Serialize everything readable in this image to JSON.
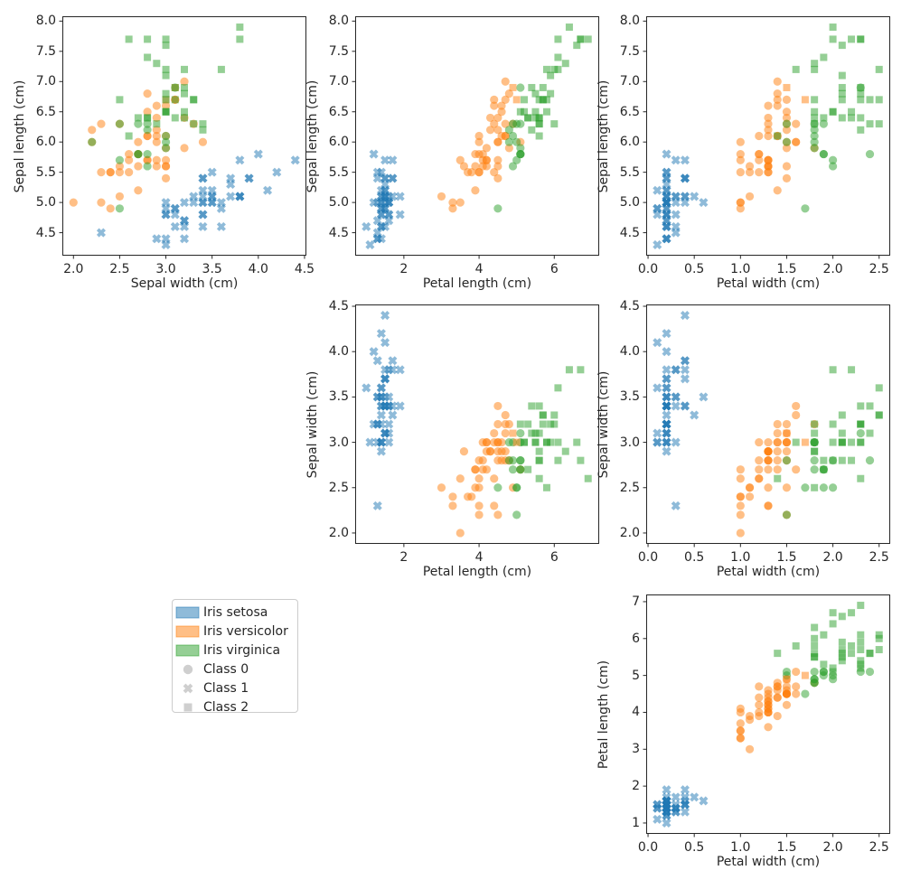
{
  "figure": {
    "background": "#ffffff"
  },
  "colors": {
    "species_colors": [
      "#1f77b4",
      "#ff7f0e",
      "#2ca02c"
    ],
    "point_alpha": 0.5,
    "legend_marker_gray": "#cfcfcf",
    "text": "#262626",
    "spine": "#262626",
    "legend_border": "#cccccc"
  },
  "legend": {
    "entries": [
      {
        "label": "Iris setosa",
        "type": "patch",
        "color": "#1f77b4"
      },
      {
        "label": "Iris versicolor",
        "type": "patch",
        "color": "#ff7f0e"
      },
      {
        "label": "Iris virginica",
        "type": "patch",
        "color": "#2ca02c"
      },
      {
        "label": "Class 0",
        "type": "marker",
        "marker": "circle",
        "color": "#cfcfcf"
      },
      {
        "label": "Class 1",
        "type": "marker",
        "marker": "x",
        "color": "#cfcfcf"
      },
      {
        "label": "Class 2",
        "type": "marker",
        "marker": "square",
        "color": "#cfcfcf"
      }
    ]
  },
  "subplots": [
    {
      "id": "sepal-width-vs-sepal-length",
      "row": 0,
      "col": 0,
      "x_feature": "sepal_width",
      "y_feature": "sepal_length",
      "xlabel": "Sepal width (cm)",
      "ylabel": "Sepal length (cm)",
      "xlim": [
        1.88,
        4.52
      ],
      "ylim": [
        4.12,
        8.08
      ],
      "xticks": [
        {
          "v": 2.0,
          "label": "2.0"
        },
        {
          "v": 2.5,
          "label": "2.5"
        },
        {
          "v": 3.0,
          "label": "3.0"
        },
        {
          "v": 3.5,
          "label": "3.5"
        },
        {
          "v": 4.0,
          "label": "4.0"
        },
        {
          "v": 4.5,
          "label": "4.5"
        }
      ],
      "yticks": [
        {
          "v": 4.5,
          "label": "4.5"
        },
        {
          "v": 5.0,
          "label": "5.0"
        },
        {
          "v": 5.5,
          "label": "5.5"
        },
        {
          "v": 6.0,
          "label": "6.0"
        },
        {
          "v": 6.5,
          "label": "6.5"
        },
        {
          "v": 7.0,
          "label": "7.0"
        },
        {
          "v": 7.5,
          "label": "7.5"
        },
        {
          "v": 8.0,
          "label": "8.0"
        }
      ]
    },
    {
      "id": "petal-length-vs-sepal-length",
      "row": 0,
      "col": 1,
      "x_feature": "petal_length",
      "y_feature": "sepal_length",
      "xlabel": "Petal length (cm)",
      "ylabel": "Sepal length (cm)",
      "xlim": [
        0.705,
        7.195
      ],
      "ylim": [
        4.12,
        8.08
      ],
      "xticks": [
        {
          "v": 2,
          "label": "2"
        },
        {
          "v": 4,
          "label": "4"
        },
        {
          "v": 6,
          "label": "6"
        }
      ],
      "yticks": [
        {
          "v": 4.5,
          "label": "4.5"
        },
        {
          "v": 5.0,
          "label": "5.0"
        },
        {
          "v": 5.5,
          "label": "5.5"
        },
        {
          "v": 6.0,
          "label": "6.0"
        },
        {
          "v": 6.5,
          "label": "6.5"
        },
        {
          "v": 7.0,
          "label": "7.0"
        },
        {
          "v": 7.5,
          "label": "7.5"
        },
        {
          "v": 8.0,
          "label": "8.0"
        }
      ]
    },
    {
      "id": "petal-width-vs-sepal-length",
      "row": 0,
      "col": 2,
      "x_feature": "petal_width",
      "y_feature": "sepal_length",
      "xlabel": "Petal width (cm)",
      "ylabel": "Sepal length (cm)",
      "xlim": [
        -0.02,
        2.62
      ],
      "ylim": [
        4.12,
        8.08
      ],
      "xticks": [
        {
          "v": 0.0,
          "label": "0.0"
        },
        {
          "v": 0.5,
          "label": "0.5"
        },
        {
          "v": 1.0,
          "label": "1.0"
        },
        {
          "v": 1.5,
          "label": "1.5"
        },
        {
          "v": 2.0,
          "label": "2.0"
        },
        {
          "v": 2.5,
          "label": "2.5"
        }
      ],
      "yticks": [
        {
          "v": 4.5,
          "label": "4.5"
        },
        {
          "v": 5.0,
          "label": "5.0"
        },
        {
          "v": 5.5,
          "label": "5.5"
        },
        {
          "v": 6.0,
          "label": "6.0"
        },
        {
          "v": 6.5,
          "label": "6.5"
        },
        {
          "v": 7.0,
          "label": "7.0"
        },
        {
          "v": 7.5,
          "label": "7.5"
        },
        {
          "v": 8.0,
          "label": "8.0"
        }
      ]
    },
    {
      "id": "petal-length-vs-sepal-width",
      "row": 1,
      "col": 1,
      "x_feature": "petal_length",
      "y_feature": "sepal_width",
      "xlabel": "Petal length (cm)",
      "ylabel": "Sepal width (cm)",
      "xlim": [
        0.705,
        7.195
      ],
      "ylim": [
        1.88,
        4.52
      ],
      "xticks": [
        {
          "v": 2,
          "label": "2"
        },
        {
          "v": 4,
          "label": "4"
        },
        {
          "v": 6,
          "label": "6"
        }
      ],
      "yticks": [
        {
          "v": 2.0,
          "label": "2.0"
        },
        {
          "v": 2.5,
          "label": "2.5"
        },
        {
          "v": 3.0,
          "label": "3.0"
        },
        {
          "v": 3.5,
          "label": "3.5"
        },
        {
          "v": 4.0,
          "label": "4.0"
        },
        {
          "v": 4.5,
          "label": "4.5"
        }
      ]
    },
    {
      "id": "petal-width-vs-sepal-width",
      "row": 1,
      "col": 2,
      "x_feature": "petal_width",
      "y_feature": "sepal_width",
      "xlabel": "Petal width (cm)",
      "ylabel": "Sepal width (cm)",
      "xlim": [
        -0.02,
        2.62
      ],
      "ylim": [
        1.88,
        4.52
      ],
      "xticks": [
        {
          "v": 0.0,
          "label": "0.0"
        },
        {
          "v": 0.5,
          "label": "0.5"
        },
        {
          "v": 1.0,
          "label": "1.0"
        },
        {
          "v": 1.5,
          "label": "1.5"
        },
        {
          "v": 2.0,
          "label": "2.0"
        },
        {
          "v": 2.5,
          "label": "2.5"
        }
      ],
      "yticks": [
        {
          "v": 2.0,
          "label": "2.0"
        },
        {
          "v": 2.5,
          "label": "2.5"
        },
        {
          "v": 3.0,
          "label": "3.0"
        },
        {
          "v": 3.5,
          "label": "3.5"
        },
        {
          "v": 4.0,
          "label": "4.0"
        },
        {
          "v": 4.5,
          "label": "4.5"
        }
      ]
    },
    {
      "id": "petal-width-vs-petal-length",
      "row": 2,
      "col": 2,
      "x_feature": "petal_width",
      "y_feature": "petal_length",
      "xlabel": "Petal width (cm)",
      "ylabel": "Petal length (cm)",
      "xlim": [
        -0.02,
        2.62
      ],
      "ylim": [
        0.705,
        7.195
      ],
      "xticks": [
        {
          "v": 0.0,
          "label": "0.0"
        },
        {
          "v": 0.5,
          "label": "0.5"
        },
        {
          "v": 1.0,
          "label": "1.0"
        },
        {
          "v": 1.5,
          "label": "1.5"
        },
        {
          "v": 2.0,
          "label": "2.0"
        },
        {
          "v": 2.5,
          "label": "2.5"
        }
      ],
      "yticks": [
        {
          "v": 1,
          "label": "1"
        },
        {
          "v": 2,
          "label": "2"
        },
        {
          "v": 3,
          "label": "3"
        },
        {
          "v": 4,
          "label": "4"
        },
        {
          "v": 5,
          "label": "5"
        },
        {
          "v": 6,
          "label": "6"
        },
        {
          "v": 7,
          "label": "7"
        }
      ]
    }
  ],
  "chart_data": {
    "type": "scatter",
    "species_names": [
      "Iris setosa",
      "Iris versicolor",
      "Iris virginica"
    ],
    "cluster_names": [
      "Class 0",
      "Class 1",
      "Class 2"
    ],
    "cluster_markers": [
      "circle",
      "x",
      "square"
    ],
    "samples": {
      "sepal_length": [
        5.1,
        4.9,
        4.7,
        4.6,
        5.0,
        5.4,
        4.6,
        5.0,
        4.4,
        4.9,
        5.4,
        4.8,
        4.8,
        4.3,
        5.8,
        5.7,
        5.4,
        5.1,
        5.7,
        5.1,
        5.4,
        5.1,
        4.6,
        5.1,
        4.8,
        5.0,
        5.0,
        5.2,
        5.2,
        4.7,
        4.8,
        5.4,
        5.2,
        5.5,
        4.9,
        5.0,
        5.5,
        4.9,
        4.4,
        5.1,
        5.0,
        4.5,
        4.4,
        5.0,
        5.1,
        4.8,
        5.1,
        4.6,
        5.3,
        5.0,
        7.0,
        6.4,
        6.9,
        5.5,
        6.5,
        5.7,
        6.3,
        4.9,
        6.6,
        5.2,
        5.0,
        5.9,
        6.0,
        6.1,
        5.6,
        6.7,
        5.6,
        5.8,
        6.2,
        5.6,
        5.9,
        6.1,
        6.3,
        6.1,
        6.4,
        6.6,
        6.8,
        6.7,
        6.0,
        5.7,
        5.5,
        5.5,
        5.8,
        6.0,
        5.4,
        6.0,
        6.7,
        6.3,
        5.6,
        5.5,
        5.5,
        6.1,
        5.8,
        5.0,
        5.6,
        5.7,
        5.7,
        6.2,
        5.1,
        5.7,
        6.3,
        5.8,
        7.1,
        6.3,
        6.5,
        7.6,
        4.9,
        7.3,
        6.7,
        7.2,
        6.5,
        6.4,
        6.8,
        5.7,
        5.8,
        6.4,
        6.5,
        7.7,
        7.7,
        6.0,
        6.9,
        5.6,
        7.7,
        6.3,
        6.7,
        7.2,
        6.2,
        6.1,
        6.4,
        7.2,
        7.4,
        7.9,
        6.4,
        6.3,
        6.1,
        7.7,
        6.3,
        6.4,
        6.0,
        6.9,
        6.7,
        6.9,
        5.8,
        6.8,
        6.7,
        6.7,
        6.3,
        6.5,
        6.2,
        5.9
      ],
      "sepal_width": [
        3.5,
        3.0,
        3.2,
        3.1,
        3.6,
        3.9,
        3.4,
        3.4,
        2.9,
        3.1,
        3.7,
        3.4,
        3.0,
        3.0,
        4.0,
        4.4,
        3.9,
        3.5,
        3.8,
        3.8,
        3.4,
        3.7,
        3.6,
        3.3,
        3.4,
        3.0,
        3.4,
        3.5,
        3.4,
        3.2,
        3.1,
        3.4,
        4.1,
        4.2,
        3.1,
        3.2,
        3.5,
        3.6,
        3.0,
        3.4,
        3.5,
        2.3,
        3.2,
        3.5,
        3.8,
        3.0,
        3.8,
        3.2,
        3.7,
        3.3,
        3.2,
        3.2,
        3.1,
        2.3,
        2.8,
        2.8,
        3.3,
        2.4,
        2.9,
        2.7,
        2.0,
        3.0,
        2.2,
        2.9,
        2.9,
        3.1,
        3.0,
        2.7,
        2.2,
        2.5,
        3.2,
        2.8,
        2.5,
        2.8,
        2.9,
        3.0,
        2.8,
        3.0,
        2.9,
        2.6,
        2.4,
        2.4,
        2.7,
        2.7,
        3.0,
        3.4,
        3.1,
        2.3,
        3.0,
        2.5,
        2.6,
        3.0,
        2.6,
        2.3,
        2.7,
        3.0,
        2.9,
        2.9,
        2.5,
        2.8,
        3.3,
        2.7,
        3.0,
        2.9,
        3.0,
        3.0,
        2.5,
        2.9,
        2.5,
        3.6,
        3.2,
        2.7,
        3.0,
        2.5,
        2.8,
        3.2,
        3.0,
        3.8,
        2.6,
        2.2,
        3.2,
        2.8,
        2.8,
        2.7,
        3.3,
        3.2,
        2.8,
        3.0,
        2.8,
        3.0,
        2.8,
        3.8,
        2.8,
        2.8,
        2.6,
        3.0,
        3.4,
        3.1,
        3.0,
        3.1,
        3.1,
        3.1,
        2.7,
        3.2,
        3.3,
        3.0,
        2.5,
        3.0,
        3.4,
        3.0
      ],
      "petal_length": [
        1.4,
        1.4,
        1.3,
        1.5,
        1.4,
        1.7,
        1.4,
        1.5,
        1.4,
        1.5,
        1.5,
        1.6,
        1.4,
        1.1,
        1.2,
        1.5,
        1.3,
        1.4,
        1.7,
        1.5,
        1.7,
        1.5,
        1.0,
        1.7,
        1.9,
        1.6,
        1.6,
        1.5,
        1.4,
        1.6,
        1.6,
        1.5,
        1.5,
        1.4,
        1.5,
        1.2,
        1.3,
        1.4,
        1.3,
        1.5,
        1.3,
        1.3,
        1.3,
        1.6,
        1.9,
        1.4,
        1.6,
        1.4,
        1.5,
        1.4,
        4.7,
        4.5,
        4.9,
        4.0,
        4.6,
        4.5,
        4.7,
        3.3,
        4.6,
        3.9,
        3.5,
        4.2,
        4.0,
        4.7,
        3.6,
        4.4,
        4.5,
        4.1,
        4.5,
        3.9,
        4.8,
        4.0,
        4.9,
        4.7,
        4.3,
        4.4,
        4.8,
        5.0,
        4.5,
        3.5,
        3.8,
        3.7,
        3.9,
        5.1,
        4.5,
        4.5,
        4.7,
        4.4,
        4.1,
        4.0,
        4.4,
        4.6,
        4.0,
        3.3,
        4.2,
        4.2,
        4.2,
        4.3,
        3.0,
        4.1,
        6.0,
        5.1,
        5.9,
        5.6,
        5.8,
        6.6,
        4.5,
        6.3,
        5.8,
        6.1,
        5.1,
        5.3,
        5.5,
        5.0,
        5.1,
        5.3,
        5.5,
        6.7,
        6.9,
        5.0,
        5.7,
        4.9,
        6.7,
        4.9,
        5.7,
        6.0,
        4.8,
        4.9,
        5.6,
        5.8,
        6.1,
        6.4,
        5.6,
        5.1,
        5.6,
        6.1,
        5.6,
        5.5,
        4.8,
        5.4,
        5.6,
        5.1,
        5.1,
        5.9,
        5.7,
        5.2,
        5.0,
        5.2,
        5.4,
        5.1
      ],
      "petal_width": [
        0.2,
        0.2,
        0.2,
        0.2,
        0.2,
        0.4,
        0.3,
        0.2,
        0.2,
        0.1,
        0.2,
        0.2,
        0.1,
        0.1,
        0.2,
        0.4,
        0.4,
        0.3,
        0.3,
        0.3,
        0.2,
        0.4,
        0.2,
        0.5,
        0.2,
        0.2,
        0.4,
        0.2,
        0.2,
        0.2,
        0.2,
        0.4,
        0.1,
        0.2,
        0.2,
        0.2,
        0.2,
        0.1,
        0.2,
        0.2,
        0.3,
        0.3,
        0.2,
        0.6,
        0.4,
        0.3,
        0.2,
        0.2,
        0.2,
        0.2,
        1.4,
        1.5,
        1.5,
        1.3,
        1.5,
        1.3,
        1.6,
        1.0,
        1.3,
        1.4,
        1.0,
        1.5,
        1.0,
        1.4,
        1.3,
        1.4,
        1.5,
        1.0,
        1.5,
        1.1,
        1.8,
        1.3,
        1.5,
        1.2,
        1.3,
        1.4,
        1.4,
        1.7,
        1.5,
        1.0,
        1.1,
        1.0,
        1.2,
        1.6,
        1.5,
        1.6,
        1.5,
        1.3,
        1.3,
        1.3,
        1.2,
        1.4,
        1.2,
        1.0,
        1.3,
        1.2,
        1.3,
        1.3,
        1.1,
        1.3,
        2.5,
        1.9,
        2.1,
        1.8,
        2.2,
        2.1,
        1.7,
        1.8,
        1.8,
        2.5,
        2.0,
        1.9,
        2.1,
        2.0,
        2.4,
        2.3,
        1.8,
        2.2,
        2.3,
        1.5,
        2.3,
        2.0,
        2.0,
        1.8,
        2.1,
        1.8,
        1.8,
        1.8,
        2.1,
        1.6,
        1.9,
        2.0,
        2.2,
        1.5,
        1.4,
        2.3,
        2.4,
        1.8,
        1.8,
        2.1,
        2.4,
        2.3,
        1.9,
        2.3,
        2.5,
        2.3,
        1.9,
        2.0,
        2.3,
        1.8
      ],
      "species": [
        0,
        0,
        0,
        0,
        0,
        0,
        0,
        0,
        0,
        0,
        0,
        0,
        0,
        0,
        0,
        0,
        0,
        0,
        0,
        0,
        0,
        0,
        0,
        0,
        0,
        0,
        0,
        0,
        0,
        0,
        0,
        0,
        0,
        0,
        0,
        0,
        0,
        0,
        0,
        0,
        0,
        0,
        0,
        0,
        0,
        0,
        0,
        0,
        0,
        0,
        1,
        1,
        1,
        1,
        1,
        1,
        1,
        1,
        1,
        1,
        1,
        1,
        1,
        1,
        1,
        1,
        1,
        1,
        1,
        1,
        1,
        1,
        1,
        1,
        1,
        1,
        1,
        1,
        1,
        1,
        1,
        1,
        1,
        1,
        1,
        1,
        1,
        1,
        1,
        1,
        1,
        1,
        1,
        1,
        1,
        1,
        1,
        1,
        1,
        1,
        2,
        2,
        2,
        2,
        2,
        2,
        2,
        2,
        2,
        2,
        2,
        2,
        2,
        2,
        2,
        2,
        2,
        2,
        2,
        2,
        2,
        2,
        2,
        2,
        2,
        2,
        2,
        2,
        2,
        2,
        2,
        2,
        2,
        2,
        2,
        2,
        2,
        2,
        2,
        2,
        2,
        2,
        2,
        2,
        2,
        2,
        2,
        2,
        2,
        2
      ],
      "cluster": [
        1,
        1,
        1,
        1,
        1,
        1,
        1,
        1,
        1,
        1,
        1,
        1,
        1,
        1,
        1,
        1,
        1,
        1,
        1,
        1,
        1,
        1,
        1,
        1,
        1,
        1,
        1,
        1,
        1,
        1,
        1,
        1,
        1,
        1,
        1,
        1,
        1,
        1,
        1,
        1,
        1,
        1,
        1,
        1,
        1,
        1,
        1,
        1,
        1,
        1,
        0,
        0,
        2,
        0,
        0,
        0,
        0,
        0,
        0,
        0,
        0,
        0,
        0,
        0,
        0,
        0,
        0,
        0,
        0,
        0,
        0,
        0,
        0,
        0,
        0,
        0,
        0,
        2,
        0,
        0,
        0,
        0,
        0,
        0,
        0,
        0,
        0,
        0,
        0,
        0,
        0,
        0,
        0,
        0,
        0,
        0,
        0,
        0,
        0,
        0,
        2,
        0,
        2,
        2,
        2,
        2,
        0,
        2,
        2,
        2,
        2,
        2,
        2,
        0,
        0,
        2,
        2,
        2,
        2,
        0,
        2,
        0,
        2,
        0,
        2,
        2,
        0,
        0,
        2,
        2,
        2,
        2,
        2,
        0,
        2,
        2,
        2,
        2,
        0,
        2,
        2,
        0,
        0,
        2,
        2,
        2,
        0,
        2,
        2,
        0
      ]
    }
  }
}
